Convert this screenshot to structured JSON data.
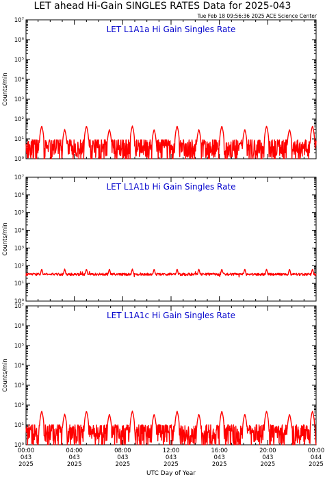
{
  "header": {
    "title": "LET ahead Hi-Gain SINGLES RATES Data for 2025-043",
    "timestamp": "Tue Feb 18 09:56:36 2025 ACE Science Center"
  },
  "colors": {
    "series": "#ff0000",
    "panel_title": "#0000cc",
    "axes": "#000000"
  },
  "chart_data": [
    {
      "type": "line",
      "title": "LET L1A1a Hi Gain Singles Rate",
      "ylabel": "Counts/min",
      "yscale": "log",
      "ylim": [
        1,
        10000000
      ],
      "ytick_labels": [
        "10⁰",
        "10¹",
        "10²",
        "10³",
        "10⁴",
        "10⁵",
        "10⁶",
        "10⁷"
      ],
      "xlim": [
        "2025-043 00:00",
        "2025-044 00:00"
      ],
      "series": [
        {
          "color": "#ff0000",
          "profile": {
            "baseline": 3,
            "noise_range": [
              1,
              9
            ],
            "peak_times_hours": [
              1.3,
              3.2,
              5.0,
              6.9,
              8.8,
              10.6,
              12.5,
              14.3,
              16.2,
              18.1,
              19.9,
              21.8,
              23.7
            ],
            "peak_value": 45,
            "peak_alt_value": 30
          }
        }
      ]
    },
    {
      "type": "line",
      "title": "LET L1A1b Hi Gain Singles Rate",
      "ylabel": "Counts/min",
      "yscale": "log",
      "ylim": [
        1,
        10000000
      ],
      "ytick_labels": [
        "10⁰",
        "10¹",
        "10²",
        "10³",
        "10⁴",
        "10⁵",
        "10⁶",
        "10⁷"
      ],
      "xlim": [
        "2025-043 00:00",
        "2025-044 00:00"
      ],
      "series": [
        {
          "color": "#ff0000",
          "profile": {
            "baseline": 33,
            "noise_range": [
              22,
              50
            ],
            "peak_times_hours": [
              1.3,
              3.2,
              5.0,
              6.9,
              8.8,
              10.6,
              12.5,
              14.3,
              16.2,
              18.1,
              19.9,
              21.8,
              23.7
            ],
            "peak_value": 65
          }
        }
      ]
    },
    {
      "type": "line",
      "title": "LET L1A1c Hi Gain Singles Rate",
      "ylabel": "Counts/min",
      "yscale": "log",
      "ylim": [
        1,
        10000000
      ],
      "ytick_labels": [
        "10⁰",
        "10¹",
        "10²",
        "10³",
        "10⁴",
        "10⁵",
        "10⁶",
        "10⁷"
      ],
      "xlim": [
        "2025-043 00:00",
        "2025-044 00:00"
      ],
      "series": [
        {
          "color": "#ff0000",
          "profile": {
            "baseline": 4,
            "noise_range": [
              1,
              10
            ],
            "peak_times_hours": [
              1.3,
              3.2,
              5.0,
              6.9,
              8.8,
              10.6,
              12.5,
              14.3,
              16.2,
              18.1,
              19.9,
              21.8,
              23.7
            ],
            "peak_value": 50,
            "peak_alt_value": 35
          }
        }
      ]
    }
  ],
  "x_axis": {
    "label": "UTC Day of Year",
    "ticks": [
      {
        "hour": 0,
        "time": "00:00",
        "doy": "043",
        "year": "2025"
      },
      {
        "hour": 4,
        "time": "04:00",
        "doy": "043",
        "year": "2025"
      },
      {
        "hour": 8,
        "time": "08:00",
        "doy": "043",
        "year": "2025"
      },
      {
        "hour": 12,
        "time": "12:00",
        "doy": "043",
        "year": "2025"
      },
      {
        "hour": 16,
        "time": "16:00",
        "doy": "043",
        "year": "2025"
      },
      {
        "hour": 20,
        "time": "20:00",
        "doy": "043",
        "year": "2025"
      },
      {
        "hour": 24,
        "time": "00:00",
        "doy": "044",
        "year": "2025"
      }
    ]
  }
}
